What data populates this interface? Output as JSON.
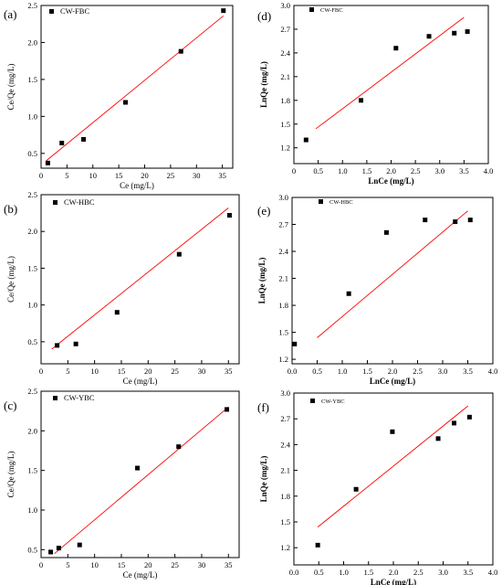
{
  "chart_data": [
    {
      "id": "a",
      "type": "scatter",
      "panel_label": "(a)",
      "legend": "CW-FBC",
      "xlabel": "Ce (mg/L)",
      "ylabel": "Ce/Qe (mg/L)",
      "xlim": [
        0,
        37
      ],
      "ylim": [
        0.3,
        2.5
      ],
      "xticks": [
        0,
        5,
        10,
        15,
        20,
        25,
        30,
        35
      ],
      "yticks": [
        0.5,
        1.0,
        1.5,
        2.0,
        2.5
      ],
      "ytick_decimals": 1,
      "points": [
        [
          1.3,
          0.37
        ],
        [
          4.0,
          0.64
        ],
        [
          8.2,
          0.69
        ],
        [
          16.3,
          1.19
        ],
        [
          27.0,
          1.88
        ],
        [
          35.2,
          2.43
        ]
      ],
      "fit_line": [
        [
          1.0,
          0.4
        ],
        [
          35.2,
          2.36
        ]
      ],
      "point_color": "#000000",
      "line_color": "#ff0000"
    },
    {
      "id": "b",
      "type": "scatter",
      "panel_label": "(b)",
      "legend": "CW-HBC",
      "xlabel": "Ce (mg/L)",
      "ylabel": "Ce/Qe (mg/L)",
      "xlim": [
        0,
        37
      ],
      "ylim": [
        0.2,
        2.5
      ],
      "xticks": [
        0,
        5,
        10,
        15,
        20,
        25,
        30,
        35
      ],
      "yticks": [
        0.5,
        1.0,
        1.5,
        2.0,
        2.5
      ],
      "ytick_decimals": 1,
      "points": [
        [
          3.0,
          0.45
        ],
        [
          6.5,
          0.47
        ],
        [
          14.2,
          0.9
        ],
        [
          25.8,
          1.69
        ],
        [
          35.2,
          2.22
        ]
      ],
      "fit_line": [
        [
          2.0,
          0.4
        ],
        [
          35.0,
          2.32
        ]
      ],
      "point_color": "#000000",
      "line_color": "#ff0000"
    },
    {
      "id": "c",
      "type": "scatter",
      "panel_label": "(c)",
      "legend": "CW-YBC",
      "xlabel": "Ce (mg/L)",
      "ylabel": "Ce/Qe (mg/L)",
      "xlim": [
        0,
        37
      ],
      "ylim": [
        0.4,
        2.5
      ],
      "xticks": [
        0,
        5,
        10,
        15,
        20,
        25,
        30,
        35
      ],
      "yticks": [
        0.5,
        1.0,
        1.5,
        2.0,
        2.5
      ],
      "ytick_decimals": 1,
      "points": [
        [
          1.8,
          0.47
        ],
        [
          3.3,
          0.52
        ],
        [
          7.2,
          0.56
        ],
        [
          18.0,
          1.53
        ],
        [
          25.7,
          1.8
        ],
        [
          34.7,
          2.27
        ]
      ],
      "fit_line": [
        [
          2.5,
          0.45
        ],
        [
          35.0,
          2.3
        ]
      ],
      "point_color": "#000000",
      "line_color": "#ff0000"
    },
    {
      "id": "d",
      "type": "scatter",
      "panel_label": "(d)",
      "legend": "CW-FBC",
      "xlabel": "LnCe (mg/L)",
      "ylabel": "LnQe (mg/L)",
      "xlim": [
        0,
        4.0
      ],
      "ylim": [
        1.0,
        3.0
      ],
      "xticks": [
        0,
        0.5,
        1.0,
        1.5,
        2.0,
        2.5,
        3.0,
        3.5,
        4.0
      ],
      "xtick_labels": [
        "0",
        "0.5",
        "1.0",
        "1.5",
        "2.0",
        "2.5",
        "3.0",
        "3.5",
        "4.0"
      ],
      "yticks": [
        1.2,
        1.5,
        1.8,
        2.1,
        2.4,
        2.7,
        3.0
      ],
      "ytick_decimals": 1,
      "points": [
        [
          0.25,
          1.3
        ],
        [
          1.38,
          1.8
        ],
        [
          2.1,
          2.46
        ],
        [
          2.78,
          2.61
        ],
        [
          3.3,
          2.65
        ],
        [
          3.57,
          2.67
        ]
      ],
      "fit_line": [
        [
          0.45,
          1.44
        ],
        [
          3.5,
          2.85
        ]
      ],
      "point_color": "#000000",
      "line_color": "#ff0000"
    },
    {
      "id": "e",
      "type": "scatter",
      "panel_label": "(e)",
      "legend": "CW-HBC",
      "xlabel": "LnCe (mg/L)",
      "ylabel": "LnQe (mg/L)",
      "xlim": [
        0,
        4.0
      ],
      "ylim": [
        1.15,
        3.0
      ],
      "xticks": [
        0,
        0.5,
        1.0,
        1.5,
        2.0,
        2.5,
        3.0,
        3.5,
        4.0
      ],
      "xtick_labels": [
        "0.0",
        "0.5",
        "1.0",
        "1.5",
        "2.0",
        "2.5",
        "3.0",
        "3.5",
        "4.0"
      ],
      "yticks": [
        1.2,
        1.5,
        1.8,
        2.1,
        2.4,
        2.7,
        3.0
      ],
      "ytick_decimals": 1,
      "points": [
        [
          0.05,
          1.37
        ],
        [
          1.13,
          1.93
        ],
        [
          1.88,
          2.61
        ],
        [
          2.65,
          2.75
        ],
        [
          3.25,
          2.73
        ],
        [
          3.55,
          2.75
        ]
      ],
      "fit_line": [
        [
          0.5,
          1.44
        ],
        [
          3.5,
          2.85
        ]
      ],
      "point_color": "#000000",
      "line_color": "#ff0000"
    },
    {
      "id": "f",
      "type": "scatter",
      "panel_label": "(f)",
      "legend": "CW-YBC",
      "xlabel": "LnCe (mg/L)",
      "ylabel": "LnQe (mg/L)",
      "xlim": [
        0,
        4.0
      ],
      "ylim": [
        1.0,
        3.0
      ],
      "xticks": [
        0,
        0.5,
        1.0,
        1.5,
        2.0,
        2.5,
        3.0,
        3.5,
        4.0
      ],
      "xtick_labels": [
        "0.0",
        "0.5",
        "1.0",
        "1.5",
        "2.0",
        "2.5",
        "3.0",
        "3.5",
        "4.0"
      ],
      "yticks": [
        1.2,
        1.5,
        1.8,
        2.1,
        2.4,
        2.7,
        3.0
      ],
      "ytick_decimals": 1,
      "points": [
        [
          0.48,
          1.23
        ],
        [
          1.25,
          1.88
        ],
        [
          1.98,
          2.55
        ],
        [
          2.9,
          2.47
        ],
        [
          3.22,
          2.65
        ],
        [
          3.53,
          2.72
        ]
      ],
      "fit_line": [
        [
          0.48,
          1.44
        ],
        [
          3.5,
          2.85
        ]
      ],
      "point_color": "#000000",
      "line_color": "#ff0000"
    }
  ]
}
